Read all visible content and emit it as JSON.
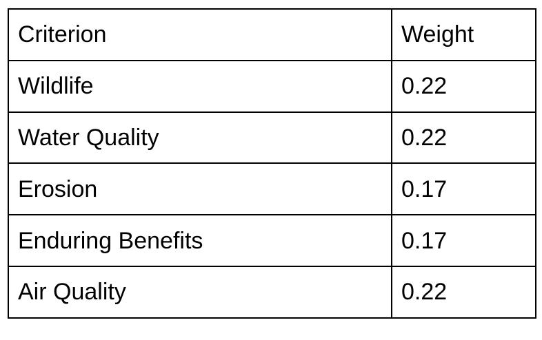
{
  "table": {
    "headers": [
      "Criterion",
      "Weight"
    ],
    "rows": [
      {
        "criterion": "Wildlife",
        "weight": "0.22"
      },
      {
        "criterion": "Water Quality",
        "weight": "0.22"
      },
      {
        "criterion": "Erosion",
        "weight": "0.17"
      },
      {
        "criterion": "Enduring Benefits",
        "weight": "0.17"
      },
      {
        "criterion": "Air Quality",
        "weight": "0.22"
      }
    ]
  }
}
